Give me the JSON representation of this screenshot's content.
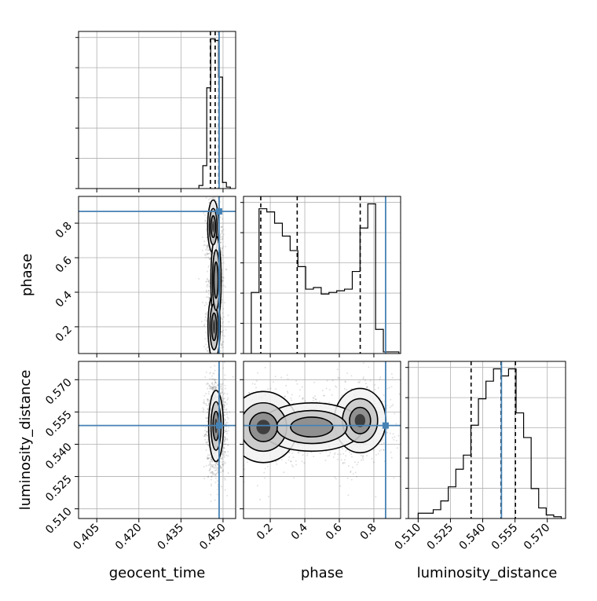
{
  "chart_data": {
    "type": "corner",
    "parameters": [
      "geocent_time",
      "phase",
      "luminosity_distance"
    ],
    "axis_labels": {
      "geocent_time": "geocent_time",
      "phase": "phase",
      "luminosity_distance": "luminosity_distance"
    },
    "ranges": {
      "geocent_time": [
        0.3985,
        0.4545
      ],
      "phase": [
        0.045,
        0.955
      ],
      "luminosity_distance": [
        0.5055,
        0.5785
      ]
    },
    "ticks": {
      "geocent_time": [
        "0.405",
        "0.420",
        "0.435",
        "0.450"
      ],
      "phase": [
        "0.2",
        "0.4",
        "0.6",
        "0.8"
      ],
      "luminosity_distance": [
        "0.510",
        "0.525",
        "0.540",
        "0.555",
        "0.570"
      ]
    },
    "grid": true,
    "truth_color": "#4682b4",
    "truths": {
      "geocent_time": 0.4486,
      "phase": 0.868,
      "luminosity_distance": 0.5487
    },
    "quantiles": {
      "geocent_time": [
        0.4455,
        0.4472,
        0.4485
      ],
      "phase": [
        0.145,
        0.356,
        0.721
      ],
      "luminosity_distance": [
        0.5346,
        0.5485,
        0.5552
      ]
    },
    "histograms_1d": {
      "geocent_time": {
        "edges": [
          0.4414,
          0.4428,
          0.4442,
          0.4456,
          0.447,
          0.4484,
          0.4498,
          0.4512,
          0.4526
        ],
        "counts": [
          2,
          15,
          66,
          98,
          97,
          73,
          4,
          1
        ]
      },
      "phase": {
        "edges": [
          0.09,
          0.135,
          0.18,
          0.225,
          0.27,
          0.315,
          0.36,
          0.405,
          0.45,
          0.495,
          0.54,
          0.585,
          0.63,
          0.675,
          0.72,
          0.765,
          0.81,
          0.855,
          0.9,
          0.945
        ],
        "counts": [
          38,
          90,
          88,
          81,
          73,
          64,
          54,
          40,
          41,
          37,
          38,
          39,
          40,
          51,
          78,
          93,
          15,
          1,
          1
        ]
      },
      "luminosity_distance": {
        "edges": [
          0.51,
          0.5135,
          0.517,
          0.5205,
          0.524,
          0.5275,
          0.531,
          0.5345,
          0.538,
          0.5415,
          0.545,
          0.5485,
          0.552,
          0.5555,
          0.559,
          0.5625,
          0.566,
          0.5695,
          0.573,
          0.5765
        ],
        "counts": [
          3,
          3,
          5,
          10,
          18,
          28,
          36,
          53,
          68,
          78,
          85,
          81,
          85,
          60,
          46,
          17,
          6,
          2,
          1
        ]
      }
    },
    "density_2d": [
      {
        "x": "geocent_time",
        "y": "phase",
        "blobs": [
          [
            0.4465,
            0.78,
            0.0009,
            0.07,
            1.0
          ],
          [
            0.4468,
            0.2,
            0.001,
            0.09,
            0.95
          ],
          [
            0.4475,
            0.47,
            0.001,
            0.14,
            0.45
          ]
        ]
      },
      {
        "x": "geocent_time",
        "y": "luminosity_distance",
        "blobs": [
          [
            0.4475,
            0.5485,
            0.0012,
            0.0075,
            1.0
          ]
        ]
      },
      {
        "x": "phase",
        "y": "luminosity_distance",
        "blobs": [
          [
            0.16,
            0.548,
            0.09,
            0.0075,
            1.0
          ],
          [
            0.72,
            0.551,
            0.07,
            0.007,
            0.9
          ],
          [
            0.44,
            0.548,
            0.16,
            0.006,
            0.5
          ]
        ]
      }
    ]
  }
}
